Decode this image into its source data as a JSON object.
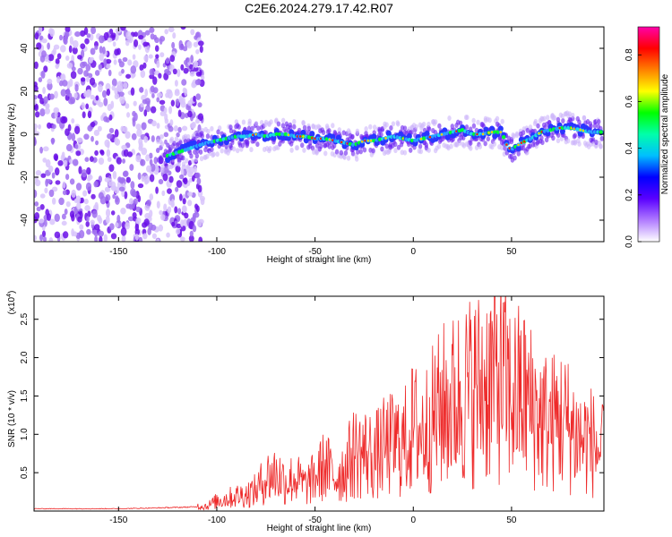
{
  "title": "C2E6.2024.279.17.42.R07",
  "chart_data": [
    {
      "type": "heatmap",
      "title": "",
      "xlabel": "Height of straight line (km)",
      "ylabel": "Frequency (Hz)",
      "xlim": [
        -193,
        97
      ],
      "ylim": [
        -50,
        50
      ],
      "xticks": [
        -150,
        -100,
        -50,
        0,
        50
      ],
      "yticks": [
        -40,
        -20,
        0,
        20,
        40
      ],
      "grid": false,
      "colorbar": {
        "label": "Normalized spectral amplitude",
        "range": [
          0.0,
          0.92
        ],
        "ticks": [
          0.0,
          0.2,
          0.4,
          0.6,
          0.8
        ],
        "colors": [
          "#ffffff",
          "#b07bff",
          "#5a00ff",
          "#0000ff",
          "#00bfff",
          "#00ffaa",
          "#00ff00",
          "#ffff00",
          "#ff8000",
          "#ff0000",
          "#ff00aa"
        ]
      },
      "ridge": {
        "name": "",
        "x": [
          -125,
          -115,
          -105,
          -100,
          -95,
          -90,
          -85,
          -80,
          -75,
          -70,
          -65,
          -60,
          -55,
          -50,
          -45,
          -40,
          -35,
          -30,
          -25,
          -20,
          -15,
          -10,
          -5,
          0,
          5,
          10,
          15,
          20,
          25,
          30,
          35,
          40,
          45,
          48,
          50,
          55,
          60,
          65,
          70,
          75,
          80,
          85,
          90,
          95
        ],
        "y": [
          -10,
          -7,
          -4,
          -3,
          -2,
          -1,
          -1,
          0,
          -1,
          0,
          0,
          -1,
          -1,
          -2,
          -2,
          -3,
          -4,
          -5,
          -3,
          -3,
          -2,
          -1,
          -2,
          -3,
          -2,
          -1,
          0,
          1,
          2,
          0,
          0,
          1,
          1,
          -6,
          -7,
          -4,
          -2,
          1,
          2,
          3,
          3,
          2,
          1,
          1
        ]
      },
      "noise_region_x": [
        -193,
        -107
      ]
    },
    {
      "type": "line",
      "title": "",
      "xlabel": "Height of straight line (km)",
      "ylabel": "SNR (10 * v/v)",
      "multiplier": "(x10",
      "multiplier_exponent": "4",
      "multiplier_close": ")",
      "xlim": [
        -193,
        97
      ],
      "ylim": [
        0,
        28000
      ],
      "xticks": [
        -150,
        -100,
        -50,
        0,
        50
      ],
      "yticks": [
        5000,
        10000,
        15000,
        20000,
        25000
      ],
      "ytick_labels": [
        "0.5",
        "1.0",
        "1.5",
        "2.0",
        "2.5"
      ],
      "grid": false,
      "series": [
        {
          "name": "",
          "color": "#ee2a2a",
          "x": [
            -193,
            -170,
            -150,
            -130,
            -115,
            -105,
            -100,
            -95,
            -90,
            -85,
            -80,
            -75,
            -70,
            -65,
            -60,
            -55,
            -50,
            -45,
            -40,
            -35,
            -30,
            -25,
            -20,
            -15,
            -10,
            -5,
            0,
            5,
            10,
            15,
            20,
            25,
            30,
            35,
            40,
            45,
            50,
            55,
            60,
            65,
            70,
            75,
            80,
            85,
            90,
            95
          ],
          "y": [
            300,
            300,
            300,
            400,
            500,
            600,
            1200,
            1500,
            1800,
            2000,
            2500,
            4000,
            4500,
            3500,
            4000,
            3000,
            4000,
            5500,
            4000,
            5000,
            7000,
            7000,
            6500,
            7500,
            8000,
            8000,
            10000,
            9500,
            11000,
            12500,
            13000,
            14000,
            14500,
            15000,
            16000,
            16000,
            13500,
            14000,
            12500,
            11000,
            10500,
            11000,
            10000,
            8500,
            8500,
            7000
          ]
        }
      ]
    }
  ]
}
